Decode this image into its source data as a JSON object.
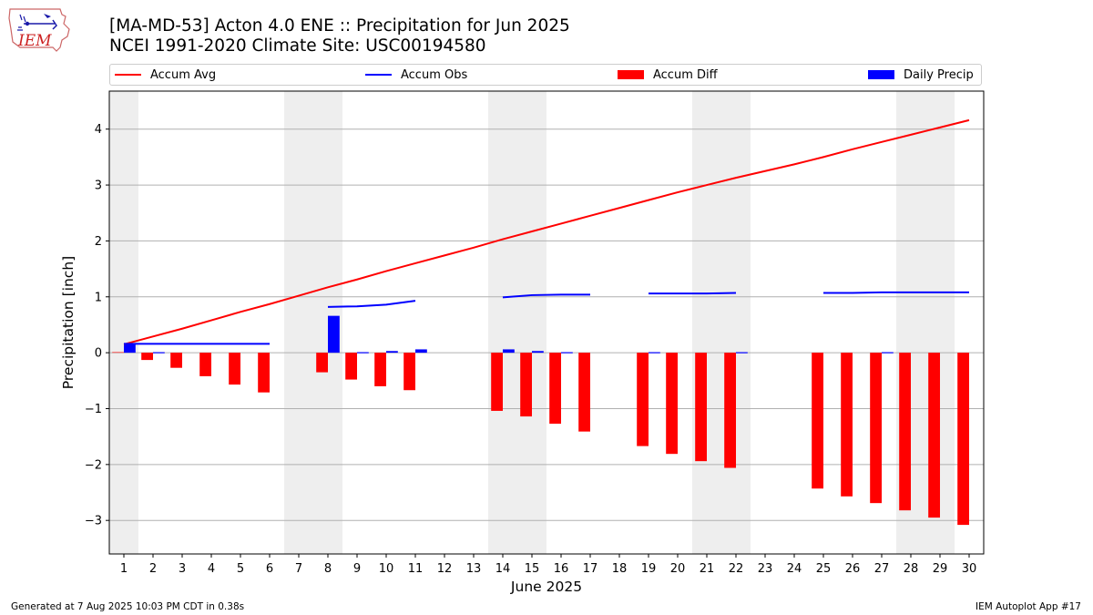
{
  "title": {
    "line1": "[MA-MD-53] Acton 4.0 ENE :: Precipitation for Jun 2025",
    "line2": "NCEI 1991-2020 Climate Site: USC00194580"
  },
  "logo": {
    "text": "IEM"
  },
  "footer": {
    "left": "Generated at 7 Aug 2025 10:03 PM CDT in 0.38s",
    "right": "IEM Autoplot App #17"
  },
  "colors": {
    "avg": "#ff0000",
    "obs": "#0000ff",
    "diff": "#ff0000",
    "daily": "#0000ff",
    "weekend": "#eeeeee",
    "grid": "#b0b0b0"
  },
  "chart_data": {
    "type": "bar",
    "xlabel": "June 2025",
    "ylabel": "Precipitation [inch]",
    "xlim": [
      0.5,
      30.5
    ],
    "ylim": [
      -3.6,
      4.68
    ],
    "yticks": [
      4,
      3,
      2,
      1,
      0,
      -1,
      -2,
      -3
    ],
    "ytick_labels": [
      "4",
      "3",
      "2",
      "1",
      "0",
      "−1",
      "−2",
      "−3"
    ],
    "xticks": [
      1,
      2,
      3,
      4,
      5,
      6,
      7,
      8,
      9,
      10,
      11,
      12,
      13,
      14,
      15,
      16,
      17,
      18,
      19,
      20,
      21,
      22,
      23,
      24,
      25,
      26,
      27,
      28,
      29,
      30
    ],
    "grid": "horizontal",
    "legend_position": "top",
    "weekend_spans": [
      [
        0.5,
        1.5
      ],
      [
        6.5,
        8.5
      ],
      [
        13.5,
        15.5
      ],
      [
        20.5,
        22.5
      ],
      [
        27.5,
        29.5
      ]
    ],
    "series": [
      {
        "name": "Accum Avg",
        "type": "line",
        "x": [
          1,
          2,
          3,
          4,
          5,
          6,
          7,
          8,
          9,
          10,
          11,
          12,
          13,
          14,
          15,
          16,
          17,
          18,
          19,
          20,
          21,
          22,
          23,
          24,
          25,
          26,
          27,
          28,
          29,
          30
        ],
        "values": [
          0.15,
          0.29,
          0.43,
          0.58,
          0.73,
          0.87,
          1.02,
          1.17,
          1.31,
          1.46,
          1.6,
          1.74,
          1.88,
          2.03,
          2.17,
          2.31,
          2.45,
          2.59,
          2.73,
          2.87,
          3.0,
          3.13,
          3.25,
          3.37,
          3.5,
          3.64,
          3.77,
          3.9,
          4.03,
          4.16
        ]
      },
      {
        "name": "Accum Obs",
        "type": "line",
        "segments": [
          {
            "x": [
              1,
              2,
              3,
              4,
              5,
              6
            ],
            "values": [
              0.16,
              0.16,
              0.16,
              0.16,
              0.16,
              0.16
            ]
          },
          {
            "x": [
              8,
              9,
              10,
              11
            ],
            "values": [
              0.82,
              0.83,
              0.86,
              0.93
            ]
          },
          {
            "x": [
              14,
              15,
              16,
              17
            ],
            "values": [
              0.99,
              1.03,
              1.04,
              1.04
            ]
          },
          {
            "x": [
              19,
              20,
              21,
              22
            ],
            "values": [
              1.06,
              1.06,
              1.06,
              1.07
            ]
          },
          {
            "x": [
              25,
              26,
              27,
              28,
              29,
              30
            ],
            "values": [
              1.07,
              1.07,
              1.08,
              1.08,
              1.08,
              1.08
            ]
          }
        ]
      },
      {
        "name": "Accum Diff",
        "type": "bar",
        "x": [
          1,
          2,
          3,
          4,
          5,
          6,
          8,
          9,
          10,
          11,
          14,
          15,
          16,
          17,
          19,
          20,
          21,
          22,
          25,
          26,
          27,
          28,
          29,
          30
        ],
        "values": [
          0.01,
          -0.13,
          -0.27,
          -0.42,
          -0.57,
          -0.71,
          -0.35,
          -0.48,
          -0.6,
          -0.67,
          -1.04,
          -1.14,
          -1.27,
          -1.41,
          -1.67,
          -1.81,
          -1.94,
          -2.06,
          -2.43,
          -2.57,
          -2.69,
          -2.82,
          -2.95,
          -3.08
        ]
      },
      {
        "name": "Daily Precip",
        "type": "bar",
        "x": [
          1,
          2,
          8,
          9,
          10,
          11,
          14,
          15,
          16,
          19,
          22,
          27
        ],
        "values": [
          0.16,
          0.01,
          0.66,
          0.01,
          0.03,
          0.06,
          0.06,
          0.03,
          0.01,
          0.01,
          0.01,
          0.01
        ]
      }
    ]
  }
}
